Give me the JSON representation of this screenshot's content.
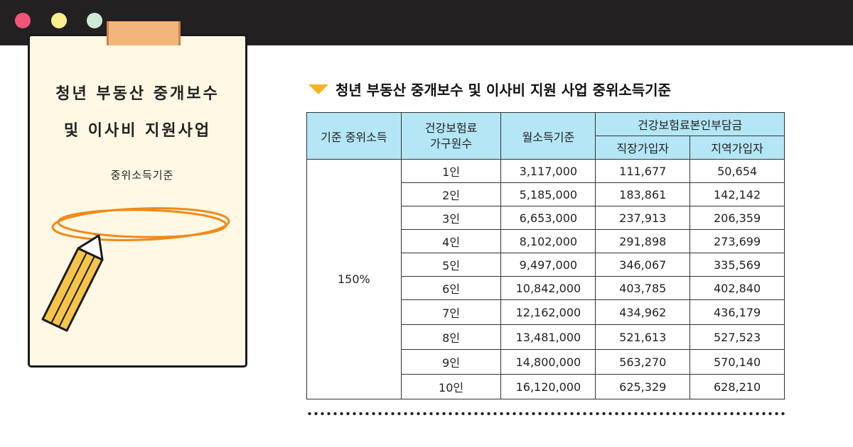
{
  "window": {
    "buttons": [
      "close",
      "minimize",
      "maximize"
    ]
  },
  "paper": {
    "title_line1": "청년 부동산 중개보수",
    "title_line2": "및 이사비 지원사업",
    "circle_label": "중위소득기준",
    "icons": [
      "tape",
      "pencil-icon",
      "circle-highlight"
    ]
  },
  "heading": {
    "icon": "triangle-down-icon",
    "text": "청년 부동산 중개보수 및 이사비 지원 사업 중위소득기준"
  },
  "table": {
    "headers": {
      "median": "기준 중위소득",
      "household": "건강보험료\n가구원수",
      "monthly": "월소득기준",
      "contribution": "건강보험료본인부담금",
      "employee": "직장가입자",
      "regional": "지역가입자"
    },
    "median_value": "150%",
    "rows": [
      {
        "household": "1인",
        "monthly": "3,117,000",
        "employee": "111,677",
        "regional": "50,654"
      },
      {
        "household": "2인",
        "monthly": "5,185,000",
        "employee": "183,861",
        "regional": "142,142"
      },
      {
        "household": "3인",
        "monthly": "6,653,000",
        "employee": "237,913",
        "regional": "206,359"
      },
      {
        "household": "4인",
        "monthly": "8,102,000",
        "employee": "291,898",
        "regional": "273,699"
      },
      {
        "household": "5인",
        "monthly": "9,497,000",
        "employee": "346,067",
        "regional": "335,569"
      },
      {
        "household": "6인",
        "monthly": "10,842,000",
        "employee": "403,785",
        "regional": "402,840"
      },
      {
        "household": "7인",
        "monthly": "12,162,000",
        "employee": "434,962",
        "regional": "436,179"
      },
      {
        "household": "8인",
        "monthly": "13,481,000",
        "employee": "521,613",
        "regional": "527,523"
      },
      {
        "household": "9인",
        "monthly": "14,800,000",
        "employee": "563,270",
        "regional": "570,140"
      },
      {
        "household": "10인",
        "monthly": "16,120,000",
        "employee": "625,329",
        "regional": "628,210"
      }
    ]
  },
  "colors": {
    "titlebar": "#232021",
    "close": "#f3547a",
    "minimize": "#fbf08e",
    "maximize": "#cfe8d8",
    "header_fill": "#b4e6f6",
    "accent": "#f5b324",
    "paper": "#fff8e4"
  }
}
